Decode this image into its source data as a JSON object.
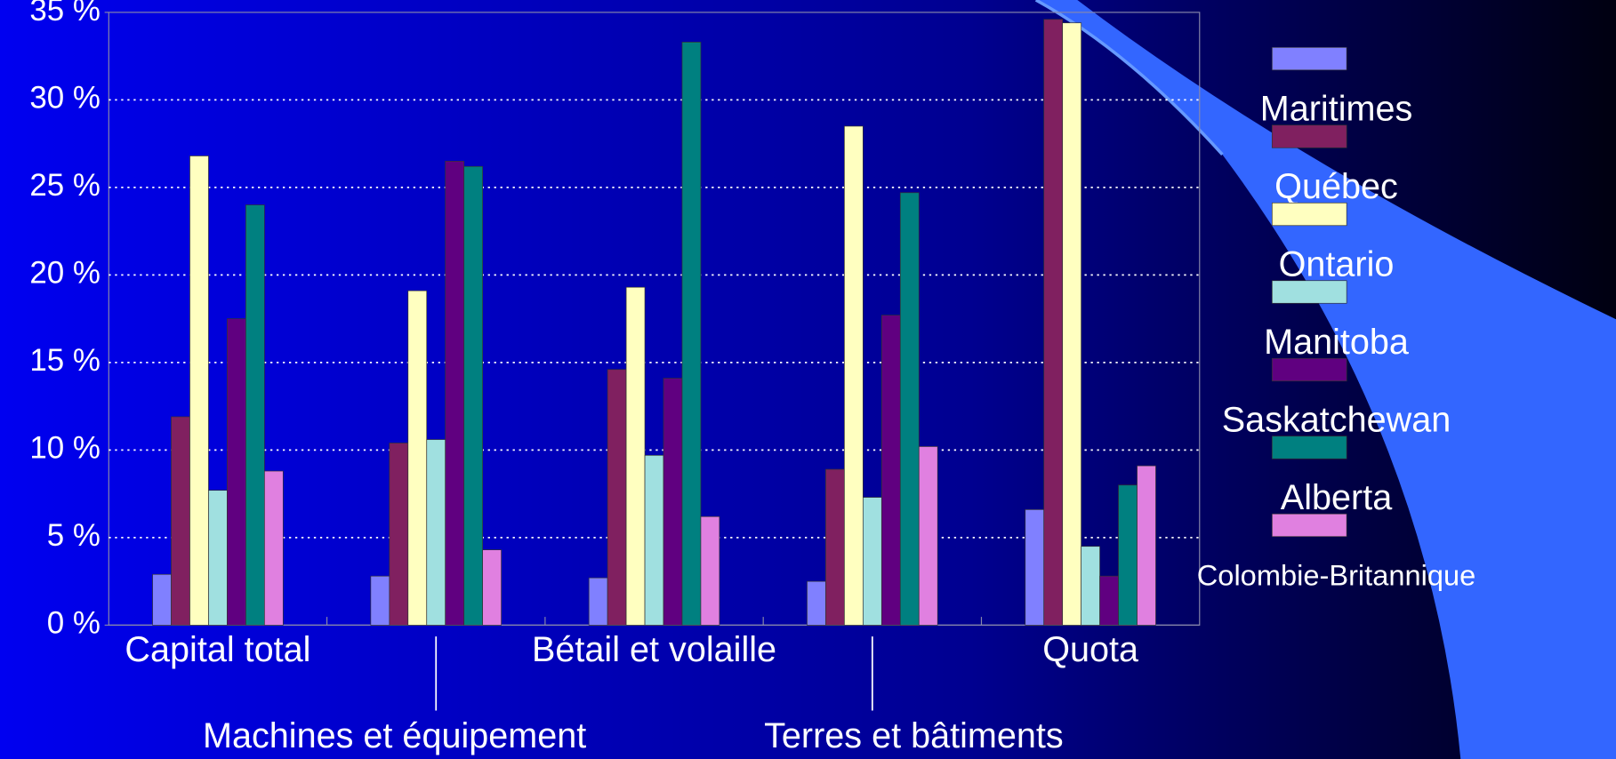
{
  "chart_data": {
    "type": "bar",
    "categories": [
      "Capital total",
      "Machines et équipement",
      "Bétail et volaille",
      "Terres et bâtiments",
      "Quota"
    ],
    "series": [
      {
        "name": "Maritimes",
        "color": "#8080ff",
        "values": [
          2.9,
          2.8,
          2.7,
          2.5,
          6.6
        ]
      },
      {
        "name": "Québec",
        "color": "#802060",
        "values": [
          11.9,
          10.4,
          14.6,
          8.9,
          34.6
        ]
      },
      {
        "name": "Ontario",
        "color": "#ffffc0",
        "values": [
          26.8,
          19.1,
          19.3,
          28.5,
          34.4
        ]
      },
      {
        "name": "Manitoba",
        "color": "#a0e0e0",
        "values": [
          7.7,
          10.6,
          9.7,
          7.3,
          4.5
        ]
      },
      {
        "name": "Saskatchewan",
        "color": "#600080",
        "values": [
          17.5,
          26.5,
          14.1,
          17.7,
          2.8
        ]
      },
      {
        "name": "Alberta",
        "color": "#008080",
        "values": [
          24.0,
          26.2,
          33.3,
          24.7,
          8.0
        ]
      },
      {
        "name": "Colombie-Britannique",
        "color": "#e080e0",
        "values": [
          8.8,
          4.3,
          6.2,
          10.2,
          9.1
        ]
      }
    ],
    "ylim": [
      0,
      35
    ],
    "yticks": [
      {
        "value": 0,
        "label": "0 %"
      },
      {
        "value": 5,
        "label": "5 %"
      },
      {
        "value": 10,
        "label": "10 %"
      },
      {
        "value": 15,
        "label": "15 %"
      },
      {
        "value": 20,
        "label": "20 %"
      },
      {
        "value": 25,
        "label": "25 %"
      },
      {
        "value": 30,
        "label": "30 %"
      },
      {
        "value": 35,
        "label": "35 %"
      }
    ],
    "grid": true,
    "legend": "right"
  }
}
